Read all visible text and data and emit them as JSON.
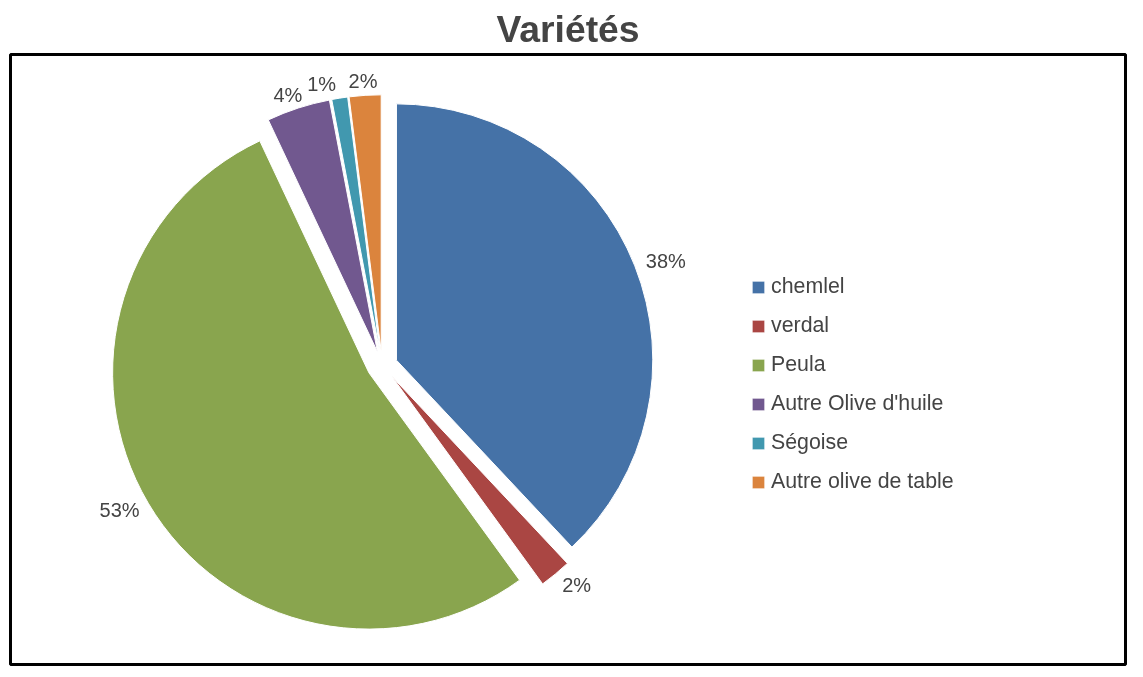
{
  "chart_data": {
    "type": "pie",
    "title": "Variétés",
    "categories": [
      "chemlel",
      "verdal",
      "Peula",
      "Autre Olive d'huile",
      "Ségoise",
      "Autre olive de table"
    ],
    "values": [
      38,
      2,
      53,
      4,
      1,
      2
    ],
    "colors": [
      "#4572a7",
      "#aa4643",
      "#89a54e",
      "#71588f",
      "#4198af",
      "#db843d"
    ],
    "value_labels": [
      "38%",
      "2%",
      "53%",
      "4%",
      "1%",
      "2%"
    ],
    "legend": "right"
  }
}
